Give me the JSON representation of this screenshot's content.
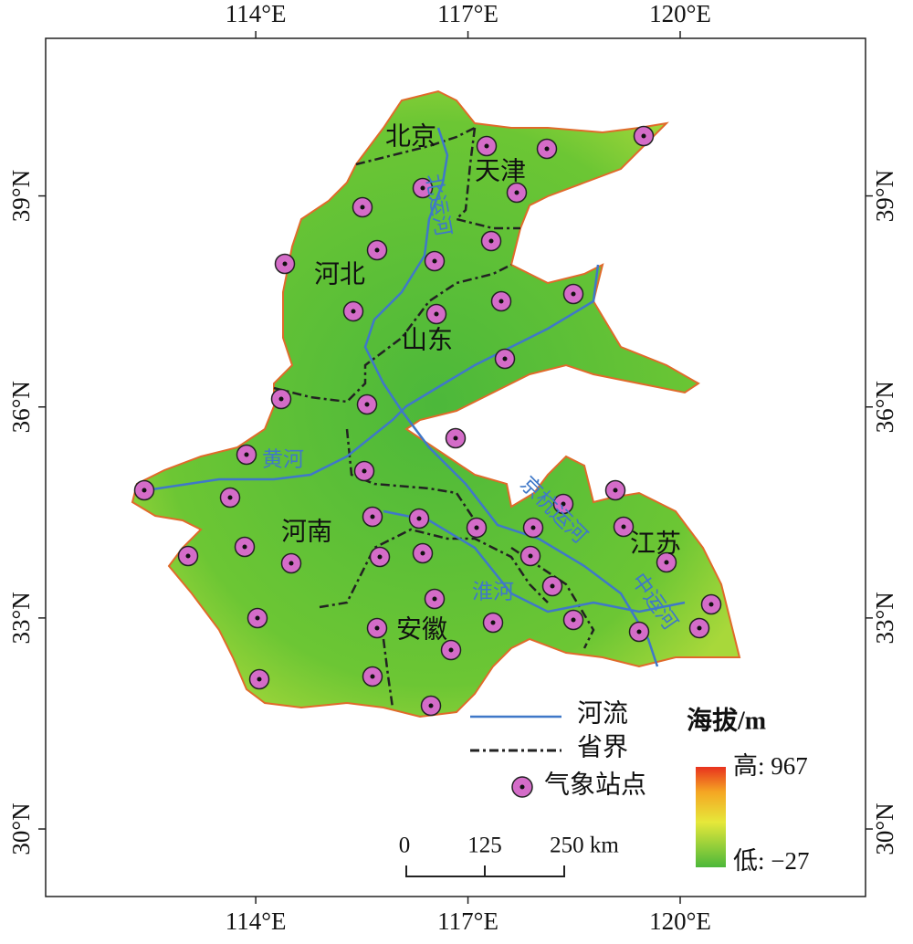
{
  "map": {
    "lon_range": [
      111.03,
      122.62
    ],
    "lat_range": [
      29.04,
      41.24
    ],
    "lon_ticks": [
      {
        "value": 114,
        "label": "114°E"
      },
      {
        "value": 117,
        "label": "117°E"
      },
      {
        "value": 120,
        "label": "120°E"
      }
    ],
    "lat_ticks": [
      {
        "value": 39,
        "label": "39°N"
      },
      {
        "value": 36,
        "label": "36°N"
      },
      {
        "value": 33,
        "label": "33°N"
      },
      {
        "value": 30,
        "label": "30°N"
      }
    ],
    "regions": [
      "北京",
      "天津",
      "河北",
      "山东",
      "河南",
      "安徽",
      "江苏"
    ],
    "rivers": [
      "黄河",
      "北运河",
      "京杭运河",
      "淮河",
      "中运河"
    ],
    "legend": {
      "river": "河流",
      "boundary": "省界",
      "station": "气象站点"
    },
    "elevation_legend": {
      "title": "海拔/m",
      "high": "高: 967",
      "low": "低: −27"
    },
    "scale_bar": {
      "labels": [
        "0",
        "125",
        "250 km"
      ]
    }
  }
}
